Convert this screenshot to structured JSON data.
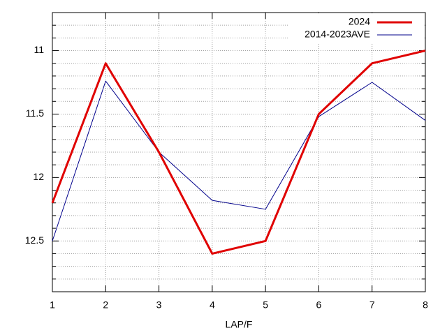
{
  "chart_data": {
    "type": "line",
    "xlabel": "LAP/F",
    "x": [
      1,
      2,
      3,
      4,
      5,
      6,
      7,
      8
    ],
    "series": [
      {
        "name": "2024",
        "color": "#e00000",
        "width": 3,
        "values": [
          12.2,
          11.1,
          11.8,
          12.6,
          12.5,
          11.5,
          11.1,
          11.0
        ]
      },
      {
        "name": "2014-2023AVE",
        "color": "#00008b",
        "width": 1,
        "values": [
          12.5,
          11.24,
          11.8,
          12.18,
          12.25,
          11.52,
          11.25,
          11.55
        ]
      }
    ],
    "xlim": [
      1,
      8
    ],
    "xticks": [
      1,
      2,
      3,
      4,
      5,
      6,
      7,
      8
    ],
    "ylim": [
      12.9,
      10.7
    ],
    "yticks": [
      {
        "value": 11,
        "label": "11"
      },
      11.5,
      {
        "value": 12,
        "label": "12"
      },
      12.5
    ],
    "grid": true,
    "minor_grid": 5,
    "legend": "top-right"
  }
}
